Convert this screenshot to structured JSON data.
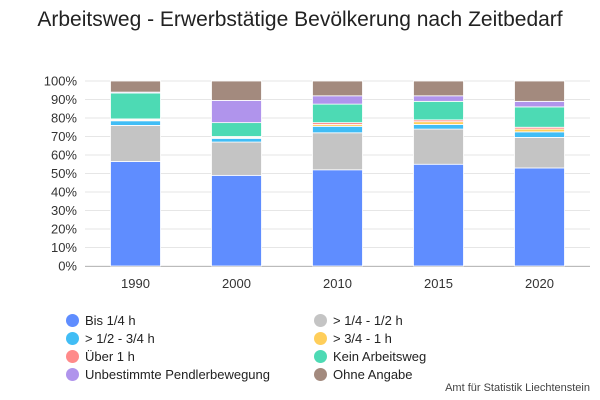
{
  "chart_data": {
    "type": "bar",
    "stacked": true,
    "normalized": true,
    "title": "Arbeitsweg - Erwerbstätige Bevölkerung nach Zeitbedarf",
    "xlabel": "",
    "ylabel": "",
    "categories": [
      "1990",
      "2000",
      "2010",
      "2015",
      "2020"
    ],
    "ylim": [
      0,
      100
    ],
    "yticks": [
      "0%",
      "10%",
      "20%",
      "30%",
      "40%",
      "50%",
      "60%",
      "70%",
      "80%",
      "90%",
      "100%"
    ],
    "grid": true,
    "legend_position": "bottom",
    "series": [
      {
        "name": "Bis 1/4 h",
        "color": "#5f8dff",
        "values": [
          56.5,
          49,
          52,
          55,
          53
        ]
      },
      {
        "name": "> 1/4 - 1/2 h",
        "color": "#c4c4c4",
        "values": [
          19.5,
          18,
          20,
          19,
          16.5
        ]
      },
      {
        "name": "> 1/2 - 3/4 h",
        "color": "#41bdf5",
        "values": [
          2.5,
          2,
          3.5,
          2.5,
          3
        ]
      },
      {
        "name": "> 3/4 - 1 h",
        "color": "#ffce5a",
        "values": [
          0.5,
          0.5,
          1,
          1.5,
          1.5
        ]
      },
      {
        "name": "Über 1 h",
        "color": "#ff8a8a",
        "values": [
          0.5,
          0.5,
          1,
          1,
          1
        ]
      },
      {
        "name": "Kein Arbeitsweg",
        "color": "#4ddab4",
        "values": [
          14,
          7.5,
          10,
          10,
          11
        ]
      },
      {
        "name": "Unbestimmte Pendlerbewegung",
        "color": "#b094ec",
        "values": [
          0.5,
          12,
          4.5,
          3,
          3
        ]
      },
      {
        "name": "Ohne Angabe",
        "color": "#a38a7e",
        "values": [
          6,
          10.5,
          8,
          8,
          11
        ]
      }
    ],
    "legend_order": [
      0,
      1,
      2,
      3,
      4,
      5,
      6,
      7
    ],
    "source": "Amt für Statistik Liechtenstein"
  }
}
